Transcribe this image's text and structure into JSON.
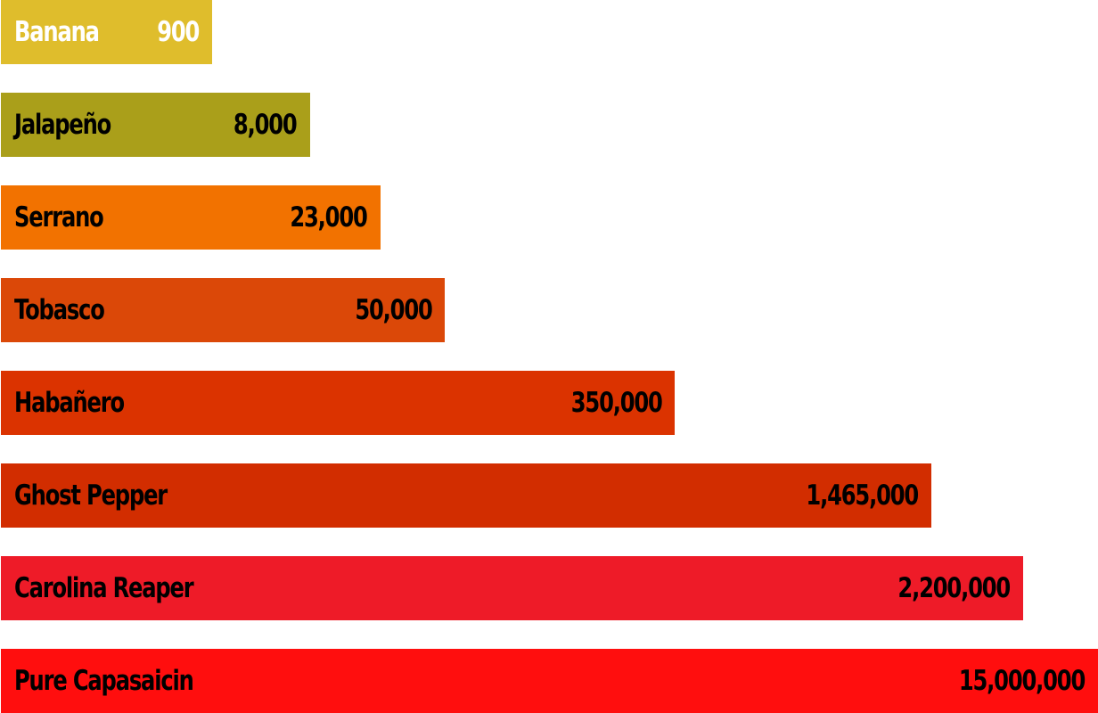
{
  "chart_data": {
    "type": "bar",
    "orientation": "horizontal",
    "categories": [
      "Banana",
      "Jalapeño",
      "Serrano",
      "Tobasco",
      "Habañero",
      "Ghost Pepper",
      "Carolina Reaper",
      "Pure Capasaicin"
    ],
    "value_labels": [
      "900",
      "8,000",
      "23,000",
      "50,000",
      "350,000",
      "1,465,000",
      "2,200,000",
      "15,000,000"
    ],
    "values": [
      900,
      8000,
      23000,
      50000,
      350000,
      1465000,
      2200000,
      15000000
    ],
    "colors": [
      "#dfbd2c",
      "#aa9f1a",
      "#f27200",
      "#db4808",
      "#db3300",
      "#d22d00",
      "#ee1b28",
      "#ff0e0e"
    ],
    "text_colors": [
      "#ffffff",
      "#000000",
      "#000000",
      "#000000",
      "#000000",
      "#000000",
      "#000000",
      "#000000"
    ],
    "title": "",
    "xlabel": "",
    "ylabel": "",
    "grid": false,
    "legend": "none"
  }
}
